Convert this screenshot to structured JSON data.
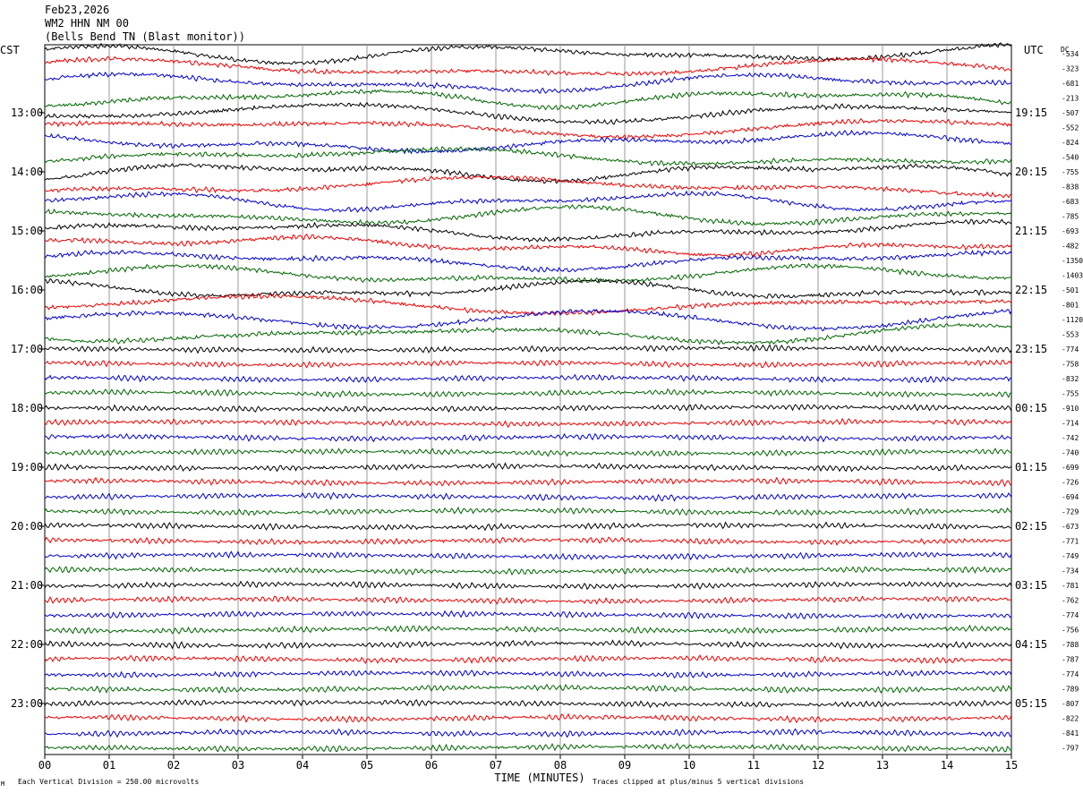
{
  "header": {
    "date": "Feb23,2026",
    "station": "WM2 HHN NM 00",
    "location": "(Bells Bend TN (Blast monitor))"
  },
  "colors": {
    "trace_cycle": [
      "#000000",
      "#ee0000",
      "#0000cc",
      "#006600"
    ],
    "grid": "#999999"
  },
  "chart_data": {
    "type": "line",
    "title": "",
    "left_axis_label": "CST",
    "right_axis_label": "UTC",
    "dc_label": "DC",
    "xlabel": "TIME (MINUTES)",
    "x_ticks": [
      "00",
      "01",
      "02",
      "03",
      "04",
      "05",
      "06",
      "07",
      "08",
      "09",
      "10",
      "11",
      "12",
      "13",
      "14",
      "15"
    ],
    "xlim": [
      0,
      15
    ],
    "rows_per_hour": 4,
    "row_minutes": 15,
    "cst_hour_labels": [
      "13:00",
      "14:00",
      "15:00",
      "16:00",
      "17:00",
      "18:00",
      "19:00",
      "20:00",
      "21:00",
      "22:00",
      "23:00"
    ],
    "utc_hour_labels": [
      "19:15",
      "20:15",
      "21:15",
      "22:15",
      "23:15",
      "00:15",
      "01:15",
      "02:15",
      "03:15",
      "04:15",
      "05:15"
    ],
    "dc_offsets": [
      -534,
      -323,
      -681,
      -213,
      -507,
      -552,
      -824,
      -540,
      -755,
      -838,
      -683,
      -785,
      -693,
      -482,
      -1350,
      -1403,
      -501,
      -801,
      -1120,
      -553,
      -774,
      -758,
      -832,
      -755,
      -910,
      -714,
      -742,
      -740,
      -699,
      -726,
      -694,
      -729,
      -673,
      -771,
      -749,
      -734,
      -781,
      -762,
      -774,
      -756,
      -788,
      -787,
      -774,
      -789,
      -807,
      -822,
      -841,
      -797
    ],
    "scale_note": "Each Vertical Division =  250.00 microvolts",
    "clip_note": "Traces clipped at plus/minus 5 vertical divisions",
    "corner_mark": "M"
  }
}
